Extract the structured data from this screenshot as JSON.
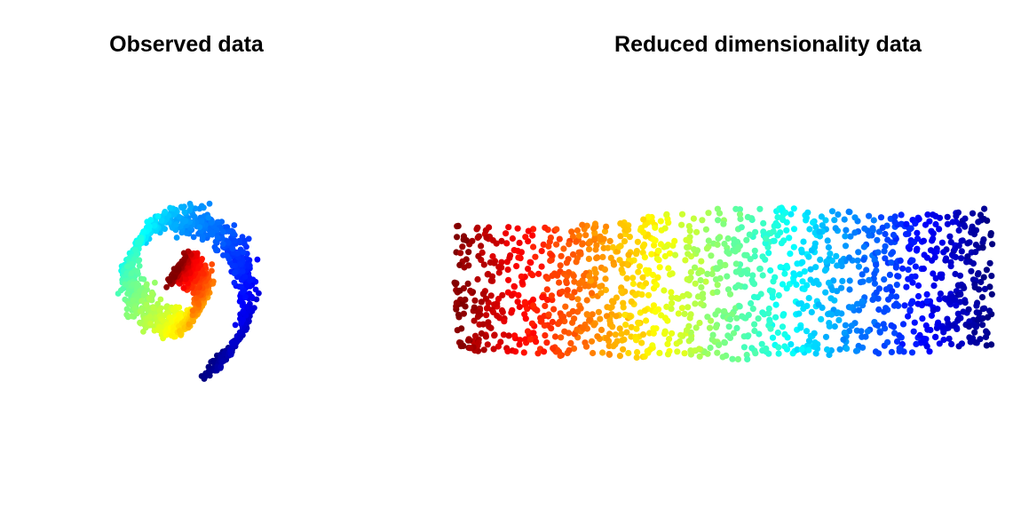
{
  "chart_data": [
    {
      "type": "scatter",
      "title": "Observed data",
      "xlabel": "",
      "ylabel": "",
      "axes_visible": false,
      "grid": false,
      "colormap": "jet",
      "color_range": [
        0,
        1
      ],
      "x_range": [
        0,
        1
      ],
      "y_range": [
        0,
        1
      ],
      "n_points": 1500,
      "shape": "swiss-roll"
    },
    {
      "type": "scatter",
      "title": "Reduced dimensionality data",
      "xlabel": "",
      "ylabel": "",
      "axes_visible": false,
      "grid": false,
      "colormap": "jet",
      "color_range": [
        0,
        1
      ],
      "x_range": [
        0,
        1
      ],
      "y_range": [
        0,
        1
      ],
      "n_points": 1500,
      "shape": "rectangle"
    }
  ]
}
